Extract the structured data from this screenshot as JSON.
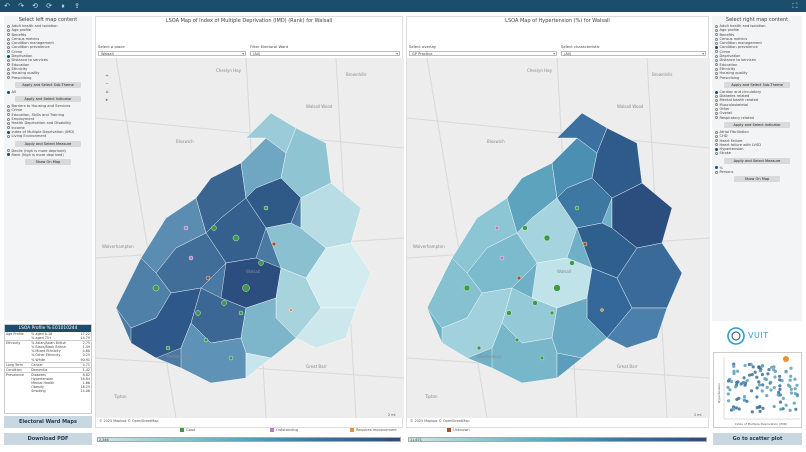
{
  "toolbar": {
    "icons": [
      "undo-icon",
      "redo-icon",
      "revert-icon",
      "refresh-icon",
      "pause-icon",
      "share-icon",
      "fullscreen-icon"
    ]
  },
  "left_menu": {
    "title": "Select left map content",
    "themes": [
      {
        "label": "Adult health and isolation",
        "selected": false
      },
      {
        "label": "Age profile",
        "selected": false
      },
      {
        "label": "Benefits",
        "selected": false
      },
      {
        "label": "Census metrics",
        "selected": false
      },
      {
        "label": "Condition management",
        "selected": false
      },
      {
        "label": "Condition prevalence",
        "selected": false
      },
      {
        "label": "Crime",
        "selected": false
      },
      {
        "label": "Deprivation",
        "selected": true
      },
      {
        "label": "Distance to services",
        "selected": false
      },
      {
        "label": "Education",
        "selected": false
      },
      {
        "label": "Ethnicity",
        "selected": false
      },
      {
        "label": "Housing quality",
        "selected": false
      },
      {
        "label": "Prescribing",
        "selected": false
      }
    ],
    "btn_subtheme": "Apply and Select Sub-Theme",
    "subthemes": [
      {
        "label": "All",
        "selected": true
      }
    ],
    "btn_indicator": "Apply and Select Indicator",
    "indicators": [
      {
        "label": "Barriers to Housing and Services",
        "selected": false
      },
      {
        "label": "Crime",
        "selected": false
      },
      {
        "label": "Education, Skills and Training",
        "selected": false
      },
      {
        "label": "Employment",
        "selected": false
      },
      {
        "label": "Health Deprivation and Disability",
        "selected": false
      },
      {
        "label": "Income",
        "selected": false
      },
      {
        "label": "Index of Multiple Deprivation (IMD)",
        "selected": true
      },
      {
        "label": "Living Environment",
        "selected": false
      }
    ],
    "btn_measure": "Apply and Select Measure",
    "measures": [
      {
        "label": "Decile (high is more deprived)",
        "selected": false
      },
      {
        "label": "Rank (high is more deprived)",
        "selected": true
      }
    ],
    "btn_show": "Show On Map"
  },
  "profile": {
    "title": "LSOA Profile % E01010244",
    "rows": [
      {
        "group": "Age Profile",
        "label": "% aged 0-16",
        "value": "17.22"
      },
      {
        "group": "",
        "label": "% aged 75+",
        "value": "14.79"
      },
      {
        "group": "Ethnicity",
        "label": "% Asian/Asian British",
        "value": "2.75"
      },
      {
        "group": "",
        "label": "% Black/Black British",
        "value": "1.49"
      },
      {
        "group": "",
        "label": "% Mixed Ethnicity",
        "value": "4.60"
      },
      {
        "group": "",
        "label": "% Other Ethnicity",
        "value": "0.25"
      },
      {
        "group": "",
        "label": "% White",
        "value": "90.91"
      },
      {
        "group": "Long Term",
        "label": "Cancer",
        "value": "4.71"
      },
      {
        "group": "Condition",
        "label": "Dementia",
        "value": "1.42"
      },
      {
        "group": "Prevalence",
        "label": "Diabetes",
        "value": "8.82"
      },
      {
        "group": "",
        "label": "Hypertension",
        "value": "18.84"
      },
      {
        "group": "",
        "label": "Mental Health",
        "value": "1.66"
      },
      {
        "group": "",
        "label": "Obesity",
        "value": "16.25"
      },
      {
        "group": "",
        "label": "Smoking",
        "value": "14.06"
      }
    ]
  },
  "buttons": {
    "electoral": "Electoral Ward Maps",
    "download": "Download PDF",
    "scatter": "Go to scatter plot"
  },
  "map_left": {
    "title": "LSOA Map of Index of Multiple Deprivation (IMD) (Rank) for Walsall",
    "place_label": "Select a place",
    "place_value": "Walsall",
    "ward_label": "Filter Electoral Ward",
    "ward_value": "(All)",
    "attribution": "© 2025 Mapbox  © OpenStreetMap",
    "scale": "2 mi",
    "places": [
      "Cheslyn Hay",
      "Brownhills",
      "Walsall Wood",
      "Bloxwich",
      "Walsall",
      "Wolverhampton",
      "Wednesbury",
      "Tipton",
      "Great Barr",
      "Stone",
      "Whitwick",
      "Tetley",
      "Wednes"
    ]
  },
  "map_right": {
    "title": "LSOA Map of Hypertension (%) for Walsall",
    "overlay_label": "Select overlay",
    "overlay_value": "GP Practice",
    "char_label": "Select characteristic",
    "char_value": "(All)",
    "attribution": "© 2025 Mapbox  © OpenStreetMap",
    "scale": "2 mi",
    "places": [
      "Cheslyn Hay",
      "Brownhills",
      "Walsall Wood",
      "Bloxwich",
      "Walsall",
      "Wolverhampton",
      "Wednesbury",
      "Tipton",
      "Great Barr"
    ]
  },
  "legend": {
    "items": [
      {
        "label": "Good",
        "color": "#3f9a45"
      },
      {
        "label": "Outstanding",
        "color": "#b77bbf"
      },
      {
        "label": "Requires improvement",
        "color": "#e8913a"
      },
      {
        "label": "Unknown",
        "color": "#a0522d"
      }
    ],
    "left_min": "2,346",
    "left_max": "32,419",
    "right_min": "11.671",
    "right_max": "20.166"
  },
  "right_menu": {
    "title": "Select right map content",
    "themes": [
      {
        "label": "Adult health and isolation",
        "selected": false
      },
      {
        "label": "Age profile",
        "selected": false
      },
      {
        "label": "Benefits",
        "selected": false
      },
      {
        "label": "Census metrics",
        "selected": false
      },
      {
        "label": "Condition management",
        "selected": false
      },
      {
        "label": "Condition prevalence",
        "selected": true
      },
      {
        "label": "Crime",
        "selected": false
      },
      {
        "label": "Deprivation",
        "selected": false
      },
      {
        "label": "Distance to services",
        "selected": false
      },
      {
        "label": "Education",
        "selected": false
      },
      {
        "label": "Ethnicity",
        "selected": false
      },
      {
        "label": "Housing quality",
        "selected": false
      },
      {
        "label": "Prescribing",
        "selected": false
      }
    ],
    "btn_subtheme": "Apply and Select Sub-Theme",
    "subthemes": [
      {
        "label": "Cardiac and circulatory",
        "selected": true
      },
      {
        "label": "Diabetes related",
        "selected": false
      },
      {
        "label": "Mental health related",
        "selected": false
      },
      {
        "label": "Musculoskeletal",
        "selected": false
      },
      {
        "label": "Other",
        "selected": false
      },
      {
        "label": "Overall",
        "selected": false
      },
      {
        "label": "Respiratory related",
        "selected": false
      }
    ],
    "btn_indicator": "Apply and Select Indicator",
    "indicators": [
      {
        "label": "Atrial Fibrillation",
        "selected": false
      },
      {
        "label": "CHD",
        "selected": false
      },
      {
        "label": "Heart Failure",
        "selected": false
      },
      {
        "label": "Heart failure with LVSD",
        "selected": false
      },
      {
        "label": "Hypertension",
        "selected": true
      },
      {
        "label": "Stroke",
        "selected": false
      }
    ],
    "btn_measure": "Apply and Select Measure",
    "measures": [
      {
        "label": "%",
        "selected": true
      },
      {
        "label": "Persons",
        "selected": false
      }
    ],
    "btn_show": "Show On Map"
  },
  "logo": {
    "text": "VUIT"
  },
  "scatter_mini": {
    "ylabel": "Hypertension",
    "xlabel": "Index of Multiple Deprivation (IMD)"
  }
}
